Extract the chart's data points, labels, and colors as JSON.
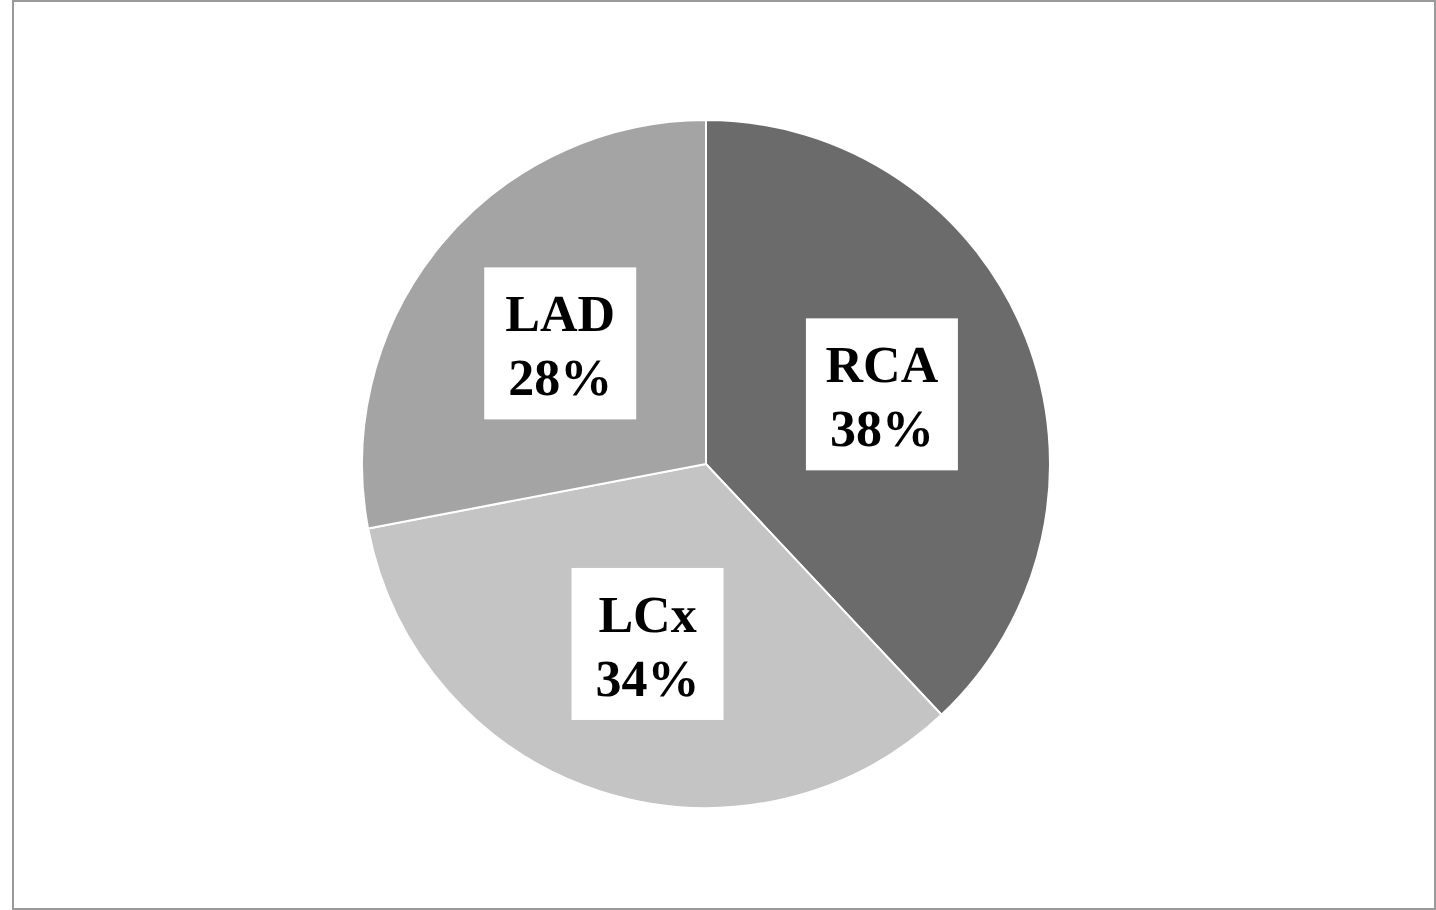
{
  "chart_data": {
    "type": "pie",
    "categories": [
      "RCA",
      "LCx",
      "LAD"
    ],
    "values": [
      38,
      34,
      28
    ],
    "colors": [
      "#6b6b6b",
      "#c4c4c4",
      "#a4a4a4"
    ],
    "value_labels": [
      "38%",
      "34%",
      "28%"
    ]
  }
}
